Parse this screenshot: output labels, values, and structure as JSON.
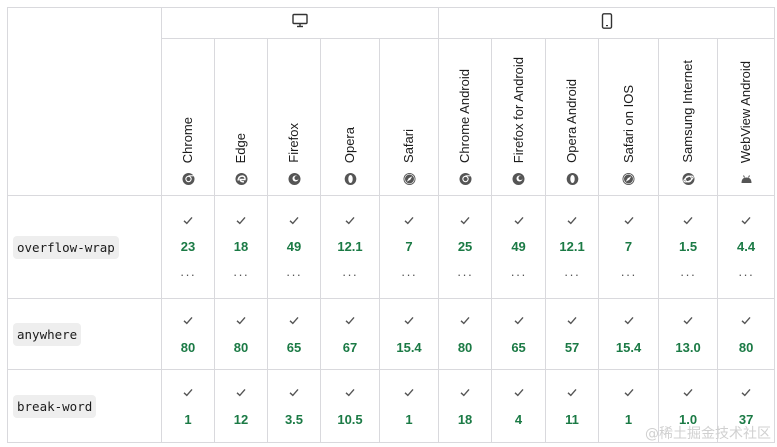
{
  "platforms": {
    "desktop_icon": "desktop-monitor-icon",
    "mobile_icon": "mobile-phone-icon"
  },
  "browsers": [
    {
      "name": "Chrome",
      "icon": "chrome-icon"
    },
    {
      "name": "Edge",
      "icon": "edge-icon"
    },
    {
      "name": "Firefox",
      "icon": "firefox-icon"
    },
    {
      "name": "Opera",
      "icon": "opera-icon"
    },
    {
      "name": "Safari",
      "icon": "safari-icon"
    },
    {
      "name": "Chrome Android",
      "icon": "chrome-icon"
    },
    {
      "name": "Firefox for Android",
      "icon": "firefox-icon"
    },
    {
      "name": "Opera Android",
      "icon": "opera-icon"
    },
    {
      "name": "Safari on IOS",
      "icon": "safari-icon"
    },
    {
      "name": "Samsung Internet",
      "icon": "samsung-internet-icon"
    },
    {
      "name": "WebView Android",
      "icon": "android-icon"
    }
  ],
  "features": [
    {
      "name": "overflow-wrap",
      "versions": [
        "23",
        "18",
        "49",
        "12.1",
        "7",
        "25",
        "49",
        "12.1",
        "7",
        "1.5",
        "4.4"
      ],
      "more": "···"
    },
    {
      "name": "anywhere",
      "versions": [
        "80",
        "80",
        "65",
        "67",
        "15.4",
        "80",
        "65",
        "57",
        "15.4",
        "13.0",
        "80"
      ]
    },
    {
      "name": "break-word",
      "versions": [
        "1",
        "12",
        "3.5",
        "10.5",
        "1",
        "18",
        "4",
        "11",
        "1",
        "1.0",
        "37"
      ]
    }
  ],
  "colors": {
    "supported": "#1b7a45",
    "border": "#d9d9dd",
    "code_bg": "#eeeeee"
  },
  "watermark": "@稀土掘金技术社区"
}
